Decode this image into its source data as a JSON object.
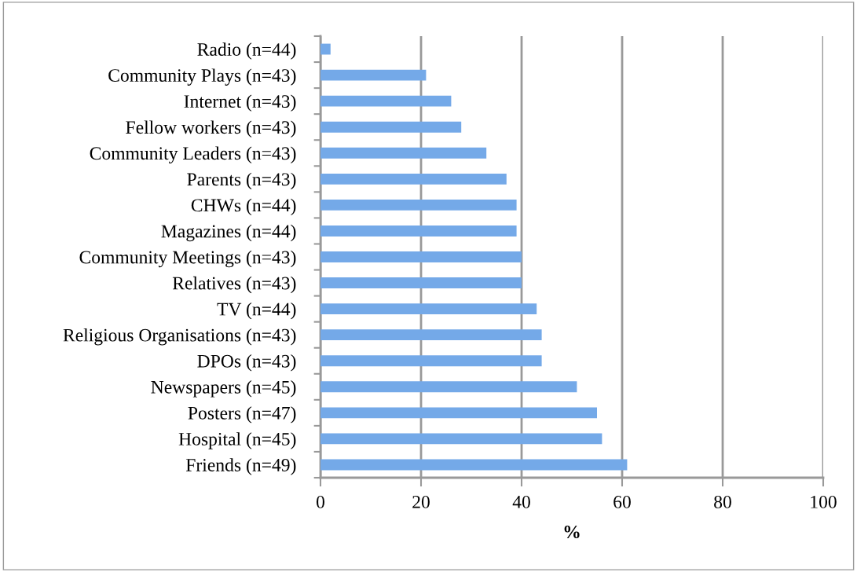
{
  "chart_data": {
    "type": "bar",
    "orientation": "horizontal",
    "xlabel": "%",
    "categories": [
      "Radio (n=44)",
      "Community Plays (n=43)",
      "Internet (n=43)",
      "Fellow workers (n=43)",
      "Community Leaders (n=43)",
      "Parents (n=43)",
      "CHWs (n=44)",
      "Magazines (n=44)",
      "Community Meetings (n=43)",
      "Relatives (n=43)",
      "TV (n=44)",
      "Religious Organisations (n=43)",
      "DPOs (n=43)",
      "Newspapers (n=45)",
      "Posters (n=47)",
      "Hospital (n=45)",
      "Friends (n=49)"
    ],
    "values": [
      2,
      21,
      26,
      28,
      33,
      37,
      39,
      39,
      40,
      40,
      43,
      44,
      44,
      51,
      55,
      56,
      61
    ],
    "color": "#74a9e8",
    "xlim": [
      0,
      100
    ],
    "xticks": [
      0,
      20,
      40,
      60,
      80,
      100
    ],
    "grid": "x",
    "legend": false
  }
}
